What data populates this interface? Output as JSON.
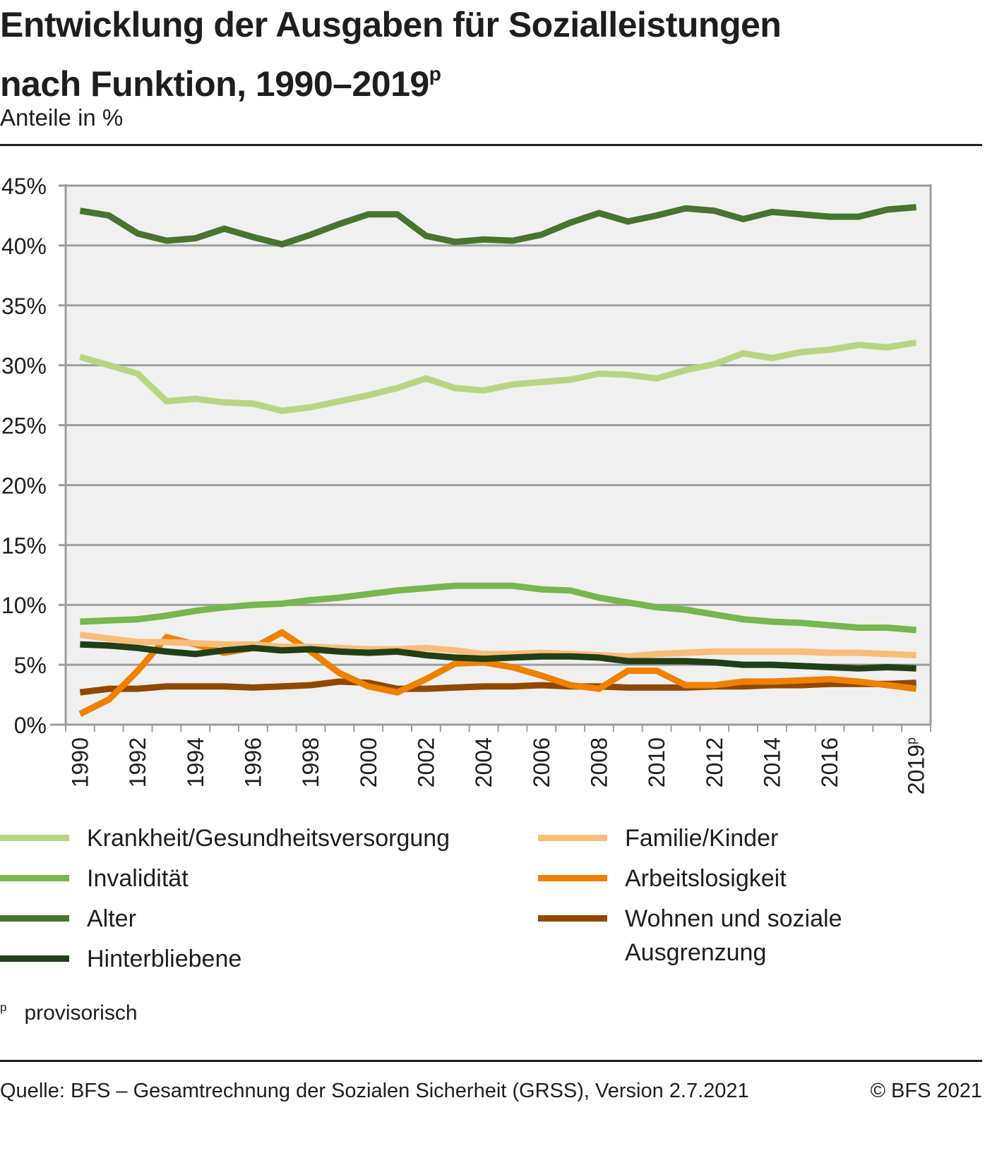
{
  "header": {
    "title_line1": "Entwicklung der Ausgaben für Sozialleistungen",
    "title_line2": "nach Funktion, 1990–2019",
    "title_sup": "p",
    "subtitle": "Anteile in %"
  },
  "note": {
    "mark": "p",
    "text": "provisorisch"
  },
  "footer": {
    "source": "Quelle: BFS – Gesamtrechnung der Sozialen Sicherheit (GRSS), Version 2.7.2021",
    "copyright": "© BFS 2021"
  },
  "chart_data": {
    "type": "line",
    "title": "Entwicklung der Ausgaben für Sozialleistungen nach Funktion, 1990–2019p",
    "subtitle": "Anteile in %",
    "xlabel": "",
    "ylabel": "",
    "ylim": [
      0,
      45
    ],
    "yticks": [
      0,
      5,
      10,
      15,
      20,
      25,
      30,
      35,
      40,
      45
    ],
    "ytick_labels": [
      "0%",
      "5%",
      "10%",
      "15%",
      "20%",
      "25%",
      "30%",
      "35%",
      "40%",
      "45%"
    ],
    "grid": true,
    "legend_position": "bottom",
    "x": [
      1990,
      1991,
      1992,
      1993,
      1994,
      1995,
      1996,
      1997,
      1998,
      1999,
      2000,
      2001,
      2002,
      2003,
      2004,
      2005,
      2006,
      2007,
      2008,
      2009,
      2010,
      2011,
      2012,
      2013,
      2014,
      2015,
      2016,
      2017,
      2018,
      2019
    ],
    "xtick_labels": [
      "1990",
      "",
      "1992",
      "",
      "1994",
      "",
      "1996",
      "",
      "1998",
      "",
      "2000",
      "",
      "2002",
      "",
      "2004",
      "",
      "2006",
      "",
      "2008",
      "",
      "2010",
      "",
      "2012",
      "",
      "2014",
      "",
      "2016",
      "",
      "",
      "2019p"
    ],
    "series": [
      {
        "name": "Krankheit/Gesundheitsversorgung",
        "color": "#b9d584",
        "values": [
          30.7,
          30.0,
          29.3,
          27.0,
          27.2,
          26.9,
          26.8,
          26.2,
          26.5,
          27.0,
          27.5,
          28.1,
          28.9,
          28.1,
          27.9,
          28.4,
          28.6,
          28.8,
          29.3,
          29.2,
          28.9,
          29.6,
          30.1,
          31.0,
          30.6,
          31.1,
          31.3,
          31.7,
          31.5,
          31.9
        ]
      },
      {
        "name": "Invalidität",
        "color": "#76b74f",
        "values": [
          8.6,
          8.7,
          8.8,
          9.1,
          9.5,
          9.8,
          10.0,
          10.1,
          10.4,
          10.6,
          10.9,
          11.2,
          11.4,
          11.6,
          11.6,
          11.6,
          11.3,
          11.2,
          10.6,
          10.2,
          9.8,
          9.6,
          9.2,
          8.8,
          8.6,
          8.5,
          8.3,
          8.1,
          8.1,
          7.9
        ]
      },
      {
        "name": "Alter",
        "color": "#477530",
        "values": [
          42.9,
          42.5,
          41.0,
          40.4,
          40.6,
          41.4,
          40.7,
          40.1,
          40.9,
          41.8,
          42.6,
          42.6,
          40.8,
          40.3,
          40.5,
          40.4,
          40.9,
          41.9,
          42.7,
          42.0,
          42.5,
          43.1,
          42.9,
          42.2,
          42.8,
          42.6,
          42.4,
          42.4,
          43.0,
          43.2
        ]
      },
      {
        "name": "Hinterbliebene",
        "color": "#213f16",
        "values": [
          6.7,
          6.6,
          6.4,
          6.1,
          5.9,
          6.2,
          6.4,
          6.2,
          6.3,
          6.1,
          6.0,
          6.1,
          5.8,
          5.6,
          5.5,
          5.6,
          5.7,
          5.7,
          5.6,
          5.3,
          5.3,
          5.3,
          5.2,
          5.0,
          5.0,
          4.9,
          4.8,
          4.7,
          4.8,
          4.7
        ]
      },
      {
        "name": "Familie/Kinder",
        "color": "#fabd78",
        "values": [
          7.5,
          7.2,
          6.9,
          6.9,
          6.8,
          6.7,
          6.7,
          6.5,
          6.5,
          6.4,
          6.3,
          6.3,
          6.4,
          6.2,
          5.9,
          5.9,
          6.0,
          5.9,
          5.8,
          5.7,
          5.9,
          6.0,
          6.1,
          6.1,
          6.1,
          6.1,
          6.0,
          6.0,
          5.9,
          5.8
        ]
      },
      {
        "name": "Arbeitslosigkeit",
        "color": "#f08000",
        "values": [
          0.9,
          2.1,
          4.5,
          7.3,
          6.7,
          6.0,
          6.4,
          7.7,
          6.1,
          4.3,
          3.2,
          2.7,
          3.8,
          5.1,
          5.2,
          4.8,
          4.1,
          3.3,
          3.0,
          4.5,
          4.5,
          3.3,
          3.3,
          3.6,
          3.6,
          3.7,
          3.8,
          3.6,
          3.3,
          3.0
        ]
      },
      {
        "name": "Wohnen und soziale Ausgrenzung",
        "color": "#914800",
        "values": [
          2.7,
          3.0,
          3.0,
          3.2,
          3.2,
          3.2,
          3.1,
          3.2,
          3.3,
          3.6,
          3.5,
          3.0,
          3.0,
          3.1,
          3.2,
          3.2,
          3.3,
          3.2,
          3.2,
          3.1,
          3.1,
          3.1,
          3.2,
          3.2,
          3.3,
          3.3,
          3.4,
          3.4,
          3.4,
          3.5
        ]
      }
    ]
  },
  "legend": {
    "items": [
      {
        "label": "Krankheit/Gesundheitsversorgung",
        "color": "#b9d584"
      },
      {
        "label": "Invalidität",
        "color": "#76b74f"
      },
      {
        "label": "Alter",
        "color": "#477530"
      },
      {
        "label": "Hinterbliebene",
        "color": "#213f16"
      },
      {
        "label": "Familie/Kinder",
        "color": "#fabd78"
      },
      {
        "label": "Arbeitslosigkeit",
        "color": "#f08000"
      },
      {
        "label": "Wohnen und soziale\nAusgrenzung",
        "color": "#914800"
      }
    ]
  }
}
